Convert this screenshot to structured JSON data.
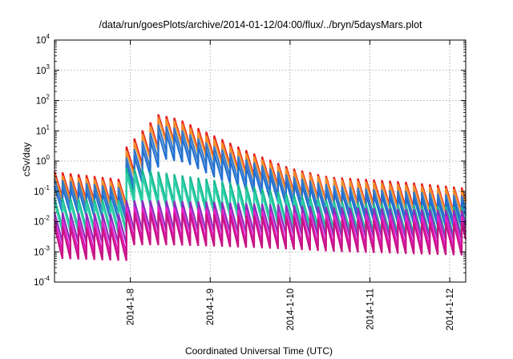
{
  "chart_data": {
    "type": "line",
    "title": "/data/run/goesPlots/archive/2014-01-12/04:00/flux/../bryn/5daysMars.plot",
    "xlabel": "Coordinated Universal Time (UTC)",
    "ylabel": "cSv/day",
    "x_tick_labels": [
      "2014-1-8",
      "2014-1-9",
      "2014-1-10",
      "2014-1-11",
      "2014-1-12"
    ],
    "x_ticks_days": [
      8,
      9,
      10,
      11,
      12
    ],
    "xlim_days": [
      7.05,
      12.2
    ],
    "y_scale": "log",
    "ylim": [
      0.0001,
      10000
    ],
    "y_ticks": [
      {
        "base": "10",
        "exp": "-4",
        "value": 0.0001
      },
      {
        "base": "10",
        "exp": "-3",
        "value": 0.001
      },
      {
        "base": "10",
        "exp": "-2",
        "value": 0.01
      },
      {
        "base": "10",
        "exp": "-1",
        "value": 0.1
      },
      {
        "base": "10",
        "exp": "0",
        "value": 1
      },
      {
        "base": "10",
        "exp": "1",
        "value": 10
      },
      {
        "base": "10",
        "exp": "2",
        "value": 100
      },
      {
        "base": "10",
        "exp": "3",
        "value": 1000
      },
      {
        "base": "10",
        "exp": "4",
        "value": 10000
      }
    ],
    "grid": true,
    "grid_style": "dotted",
    "sawtooth_period_days": 0.1,
    "event_onset_day": 7.95,
    "series": [
      {
        "color": "#e41a1c",
        "envelope": [
          [
            7.05,
            0.45
          ],
          [
            7.9,
            0.25
          ],
          [
            7.95,
            3.0
          ],
          [
            8.35,
            35
          ],
          [
            8.6,
            25
          ],
          [
            9.0,
            8
          ],
          [
            9.5,
            2.0
          ],
          [
            10.0,
            0.6
          ],
          [
            10.5,
            0.3
          ],
          [
            11.0,
            0.25
          ],
          [
            11.5,
            0.2
          ],
          [
            12.2,
            0.13
          ]
        ],
        "drop": 7.5
      },
      {
        "color": "#f28e2b",
        "envelope": [
          [
            7.05,
            0.35
          ],
          [
            7.9,
            0.2
          ],
          [
            7.95,
            2.2
          ],
          [
            8.35,
            28
          ],
          [
            8.6,
            20
          ],
          [
            9.0,
            6
          ],
          [
            9.5,
            1.6
          ],
          [
            10.0,
            0.5
          ],
          [
            10.5,
            0.26
          ],
          [
            11.0,
            0.2
          ],
          [
            11.5,
            0.16
          ],
          [
            12.2,
            0.11
          ]
        ],
        "drop": 7.0
      },
      {
        "color": "#3778c2",
        "envelope": [
          [
            7.05,
            0.25
          ],
          [
            7.9,
            0.13
          ],
          [
            7.95,
            1.3
          ],
          [
            8.35,
            16
          ],
          [
            8.6,
            12
          ],
          [
            9.0,
            3.5
          ],
          [
            9.5,
            1.0
          ],
          [
            10.0,
            0.32
          ],
          [
            10.5,
            0.16
          ],
          [
            11.0,
            0.12
          ],
          [
            11.5,
            0.1
          ],
          [
            12.2,
            0.07
          ]
        ],
        "drop": 8.0
      },
      {
        "color": "#1f6fd1",
        "envelope": [
          [
            7.05,
            0.15
          ],
          [
            7.9,
            0.08
          ],
          [
            7.95,
            0.8
          ],
          [
            8.35,
            9
          ],
          [
            8.6,
            7
          ],
          [
            9.0,
            2.0
          ],
          [
            9.5,
            0.6
          ],
          [
            10.0,
            0.2
          ],
          [
            10.5,
            0.1
          ],
          [
            11.0,
            0.08
          ],
          [
            11.5,
            0.065
          ],
          [
            12.2,
            0.045
          ]
        ],
        "drop": 8.0
      },
      {
        "color": "#17b890",
        "envelope": [
          [
            7.05,
            0.06
          ],
          [
            7.9,
            0.05
          ],
          [
            7.95,
            0.6
          ],
          [
            8.35,
            0.45
          ],
          [
            8.6,
            0.35
          ],
          [
            9.0,
            0.25
          ],
          [
            9.5,
            0.15
          ],
          [
            10.0,
            0.08
          ],
          [
            10.5,
            0.05
          ],
          [
            11.0,
            0.04
          ],
          [
            11.5,
            0.035
          ],
          [
            12.2,
            0.03
          ]
        ],
        "drop": 10.0
      },
      {
        "color": "#2ecfa8",
        "envelope": [
          [
            7.05,
            0.045
          ],
          [
            7.9,
            0.04
          ],
          [
            7.95,
            0.4
          ],
          [
            8.35,
            0.3
          ],
          [
            8.6,
            0.25
          ],
          [
            9.0,
            0.17
          ],
          [
            9.5,
            0.1
          ],
          [
            10.0,
            0.06
          ],
          [
            10.5,
            0.04
          ],
          [
            11.0,
            0.032
          ],
          [
            11.5,
            0.028
          ],
          [
            12.2,
            0.024
          ]
        ],
        "drop": 10.0
      },
      {
        "color": "#8b2fc0",
        "envelope": [
          [
            7.05,
            0.02
          ],
          [
            7.9,
            0.018
          ],
          [
            7.95,
            0.05
          ],
          [
            8.35,
            0.05
          ],
          [
            9.0,
            0.045
          ],
          [
            9.5,
            0.04
          ],
          [
            10.0,
            0.035
          ],
          [
            10.5,
            0.03
          ],
          [
            11.0,
            0.028
          ],
          [
            11.5,
            0.026
          ],
          [
            12.2,
            0.024
          ]
        ],
        "drop": 10.0
      },
      {
        "color": "#e61ec8",
        "envelope": [
          [
            7.05,
            0.012
          ],
          [
            7.9,
            0.01
          ],
          [
            7.95,
            0.03
          ],
          [
            8.35,
            0.03
          ],
          [
            9.0,
            0.027
          ],
          [
            9.5,
            0.024
          ],
          [
            10.0,
            0.02
          ],
          [
            10.5,
            0.018
          ],
          [
            11.0,
            0.017
          ],
          [
            11.5,
            0.016
          ],
          [
            12.2,
            0.015
          ]
        ],
        "drop": 12.0
      },
      {
        "color": "#c71585",
        "envelope": [
          [
            7.05,
            0.007
          ],
          [
            7.9,
            0.006
          ],
          [
            7.95,
            0.02
          ],
          [
            8.35,
            0.02
          ],
          [
            9.0,
            0.018
          ],
          [
            9.5,
            0.016
          ],
          [
            10.0,
            0.014
          ],
          [
            10.5,
            0.012
          ],
          [
            11.0,
            0.011
          ],
          [
            11.5,
            0.01
          ],
          [
            12.2,
            0.009
          ]
        ],
        "drop": 12.0
      }
    ]
  }
}
